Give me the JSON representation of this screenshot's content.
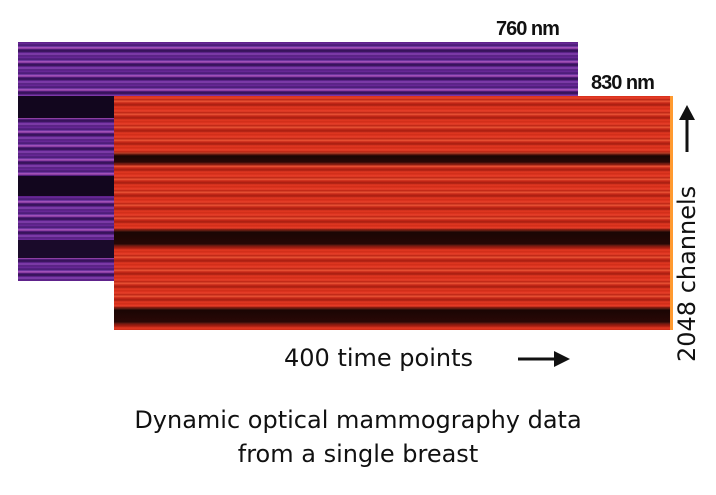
{
  "panels": {
    "back_label": "760 nm",
    "front_label": "830 nm"
  },
  "axes": {
    "x_label": "400 time points",
    "y_label": "2048 channels"
  },
  "caption": {
    "line1": "Dynamic optical mammography data",
    "line2": "from a single breast"
  },
  "colors": {
    "back_panel": "#5a1f86",
    "front_panel": "#d52d1a",
    "front_edge": "#ff9a30"
  }
}
